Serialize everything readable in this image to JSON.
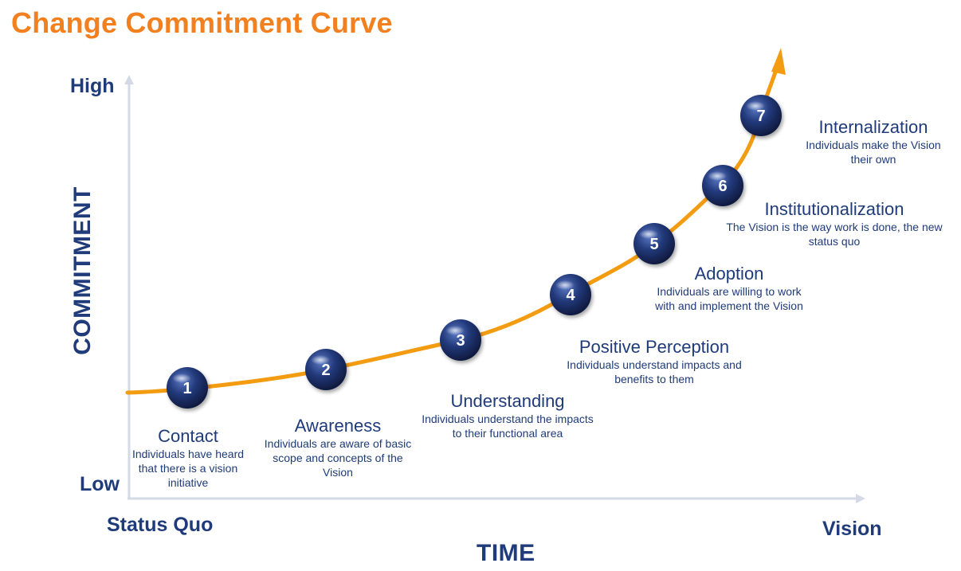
{
  "title": "Change Commitment Curve",
  "axes": {
    "y_label": "COMMITMENT",
    "y_high": "High",
    "y_low": "Low",
    "x_label": "TIME",
    "x_start": "Status Quo",
    "x_end": "Vision"
  },
  "colors": {
    "title": "#f2801f",
    "curve": "#f39c12",
    "text": "#1f3b7a",
    "axis": "#d4d9e6",
    "node": "#1c2b5e"
  },
  "stages": [
    {
      "number": "1",
      "title": "Contact",
      "description": "Individuals have heard that there is a vision initiative"
    },
    {
      "number": "2",
      "title": "Awareness",
      "description": "Individuals are aware of basic scope and concepts of the Vision"
    },
    {
      "number": "3",
      "title": "Understanding",
      "description": "Individuals understand the impacts to their functional area"
    },
    {
      "number": "4",
      "title": "Positive Perception",
      "description": "Individuals understand impacts and benefits to them"
    },
    {
      "number": "5",
      "title": "Adoption",
      "description": "Individuals are willing to work with and implement the Vision"
    },
    {
      "number": "6",
      "title": "Institutionalization",
      "description": "The Vision is the way work is done, the new status quo"
    },
    {
      "number": "7",
      "title": "Internalization",
      "description": "Individuals make the Vision their own"
    }
  ]
}
